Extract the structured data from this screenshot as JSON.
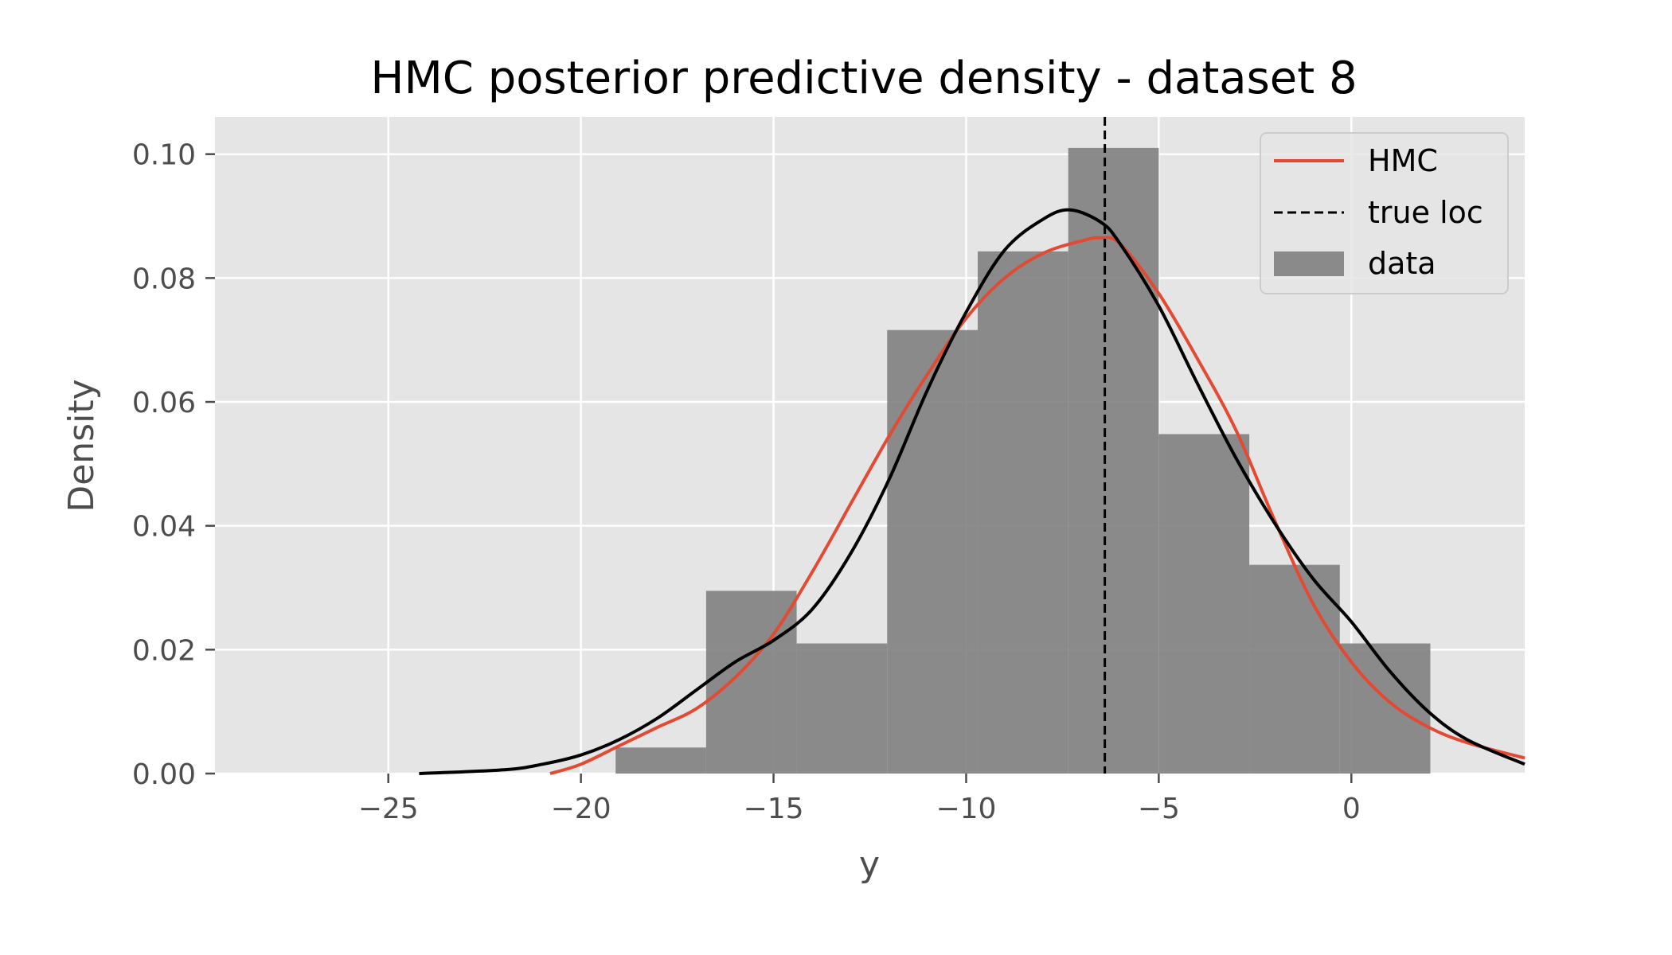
{
  "chart_data": {
    "type": "histogram+line",
    "title": "HMC posterior predictive density - dataset 8",
    "xlabel": "y",
    "ylabel": "Density",
    "xlim": [
      -29.5,
      4.5
    ],
    "ylim": [
      0,
      0.106
    ],
    "xticks": [
      -25,
      -20,
      -15,
      -10,
      -5,
      0
    ],
    "xtick_labels": [
      "−25",
      "−20",
      "−15",
      "−10",
      "−5",
      "0"
    ],
    "yticks": [
      0.0,
      0.02,
      0.04,
      0.06,
      0.08,
      0.1
    ],
    "ytick_labels": [
      "0.00",
      "0.02",
      "0.04",
      "0.06",
      "0.08",
      "0.10"
    ],
    "grid": true,
    "legend_position": "top-right",
    "legend": [
      {
        "label": "HMC",
        "style": "line",
        "color": "#e24a33"
      },
      {
        "label": "true loc",
        "style": "dashed",
        "color": "#000000"
      },
      {
        "label": "data",
        "style": "patch",
        "color": "#808080"
      }
    ],
    "histogram": {
      "name": "data",
      "color": "#808080",
      "bins": [
        {
          "x0": -19.1,
          "x1": -16.75,
          "density": 0.0042
        },
        {
          "x0": -16.75,
          "x1": -14.4,
          "density": 0.0295
        },
        {
          "x0": -14.4,
          "x1": -12.05,
          "density": 0.021
        },
        {
          "x0": -12.05,
          "x1": -9.7,
          "density": 0.0716
        },
        {
          "x0": -9.7,
          "x1": -7.35,
          "density": 0.0843
        },
        {
          "x0": -7.35,
          "x1": -5.0,
          "density": 0.101
        },
        {
          "x0": -5.0,
          "x1": -2.65,
          "density": 0.0548
        },
        {
          "x0": -2.65,
          "x1": -0.3,
          "density": 0.0337
        },
        {
          "x0": -0.3,
          "x1": 2.05,
          "density": 0.021
        }
      ]
    },
    "series": [
      {
        "name": "HMC",
        "color": "#e24a33",
        "x": [
          -20.8,
          -20,
          -19,
          -18,
          -17,
          -16,
          -15,
          -14,
          -13,
          -12,
          -11,
          -10,
          -9,
          -8,
          -7,
          -6.5,
          -6,
          -5,
          -4,
          -3,
          -2,
          -1,
          0,
          1,
          2,
          3,
          4.5
        ],
        "y": [
          0.0,
          0.0015,
          0.0045,
          0.0075,
          0.0105,
          0.0155,
          0.0225,
          0.0325,
          0.0435,
          0.0545,
          0.0645,
          0.0735,
          0.08,
          0.084,
          0.086,
          0.0865,
          0.0855,
          0.0775,
          0.067,
          0.0555,
          0.041,
          0.0275,
          0.018,
          0.0115,
          0.0075,
          0.005,
          0.0025
        ]
      },
      {
        "name": "kde",
        "color": "#000000",
        "x": [
          -24.2,
          -22,
          -21,
          -20,
          -19,
          -18,
          -17,
          -16,
          -15,
          -14,
          -13,
          -12,
          -11,
          -10,
          -9,
          -8,
          -7.3,
          -6.5,
          -6,
          -5,
          -4,
          -3,
          -2,
          -1,
          0,
          1,
          2,
          3,
          4.5
        ],
        "y": [
          0.0,
          0.0006,
          0.0015,
          0.003,
          0.0055,
          0.009,
          0.0135,
          0.018,
          0.0215,
          0.0265,
          0.0355,
          0.0475,
          0.062,
          0.0745,
          0.0845,
          0.0895,
          0.091,
          0.089,
          0.0855,
          0.0755,
          0.063,
          0.051,
          0.0405,
          0.0315,
          0.0245,
          0.0165,
          0.01,
          0.0055,
          0.0015
        ]
      }
    ],
    "vline": {
      "name": "true loc",
      "x": -6.4,
      "style": "dashed",
      "color": "#000000"
    },
    "colors": {
      "axes_bg": "#e5e5e5",
      "grid": "#ffffff"
    }
  }
}
